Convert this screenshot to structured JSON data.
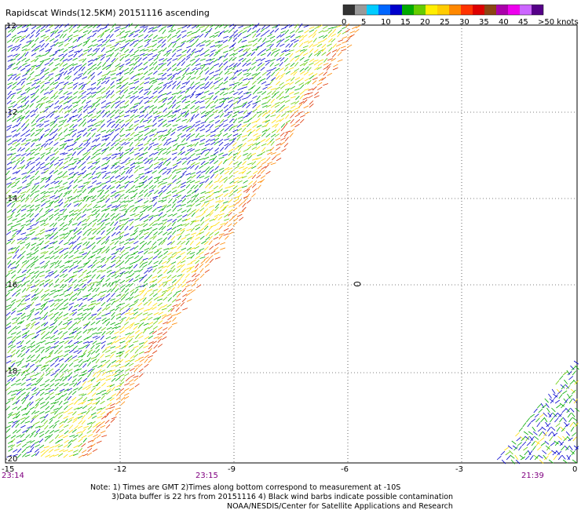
{
  "title": "Rapidscat Winds(12.5KM) 20151116 ascending",
  "legend": {
    "labels": [
      "0",
      "5",
      "10",
      "15",
      "20",
      "25",
      "30",
      "35",
      "40",
      "45",
      ">50 knots"
    ],
    "colors": [
      "#333333",
      "#999999",
      "#00ccff",
      "#0066ff",
      "#0000cc",
      "#00aa00",
      "#66cc00",
      "#ffee00",
      "#ffcc00",
      "#ff8800",
      "#ff3300",
      "#dd0000",
      "#8b4513",
      "#aa00aa",
      "#ee00ee",
      "#cc66ff",
      "#550088"
    ]
  },
  "axes": {
    "x_labels": [
      "-15",
      "-12",
      "-9",
      "-6",
      "-3",
      "0"
    ],
    "y_labels": [
      "-12",
      "-14",
      "-16",
      "-18",
      "-20"
    ],
    "y_label_12": "12"
  },
  "times": [
    "23:14",
    "23:15",
    "21:39"
  ],
  "notes": [
    "Note: 1) Times are GMT 2)Times along bottom correspond to measurement at -10S",
    "3)Data buffer is 22 hrs from 20151116 4) Black wind barbs indicate possible contamination",
    "NOAA/NESDIS/Center for Satellite Applications and Research"
  ]
}
